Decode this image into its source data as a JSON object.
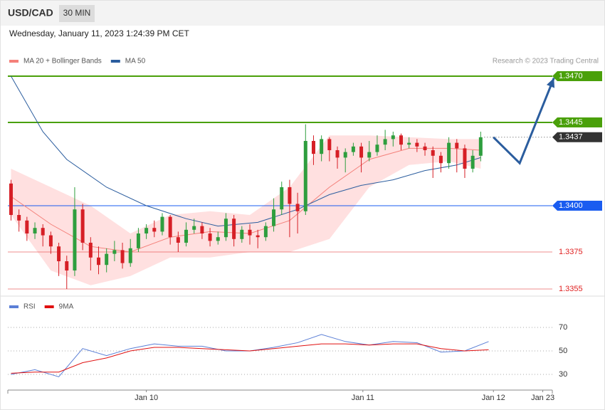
{
  "header": {
    "symbol": "USD/CAD",
    "timeframe": "30 MIN",
    "datetime": "Wednesday, January 11, 2023 1:24:39 PM CET",
    "credit": "Research © 2023 Trading Central"
  },
  "chart_data": [
    {
      "type": "candlestick",
      "xlim": [
        -0.4,
        68
      ],
      "ylim": [
        1.3353,
        1.348
      ],
      "up_color": "#2e9e3e",
      "down_color": "#d61f26",
      "open": [
        1.3412,
        1.3395,
        1.3392,
        1.3385,
        1.3388,
        1.3384,
        1.3378,
        1.337,
        1.3365,
        1.3398,
        1.338,
        1.3372,
        1.3368,
        1.3374,
        1.3376,
        1.3369,
        1.3377,
        1.3385,
        1.3388,
        1.3386,
        1.3394,
        1.3383,
        1.338,
        1.3387,
        1.3389,
        1.3385,
        1.3381,
        1.3383,
        1.3393,
        1.3382,
        1.3387,
        1.3384,
        1.3383,
        1.3389,
        1.3398,
        1.341,
        1.3401,
        1.3397,
        1.3435,
        1.3428,
        1.3436,
        1.343,
        1.3426,
        1.3429,
        1.3432,
        1.3426,
        1.3429,
        1.3433,
        1.3436,
        1.3438,
        1.3433,
        1.3434,
        1.3432,
        1.343,
        1.3427,
        1.3423,
        1.3434,
        1.3431,
        1.342,
        1.3427
      ],
      "high": [
        1.3414,
        1.3398,
        1.3394,
        1.3391,
        1.339,
        1.3386,
        1.338,
        1.3373,
        1.341,
        1.3401,
        1.3383,
        1.3378,
        1.3377,
        1.3381,
        1.338,
        1.3382,
        1.3388,
        1.339,
        1.3392,
        1.3396,
        1.3395,
        1.3386,
        1.3391,
        1.3393,
        1.3391,
        1.3388,
        1.3386,
        1.3396,
        1.3395,
        1.3389,
        1.339,
        1.3387,
        1.3391,
        1.3404,
        1.3413,
        1.3414,
        1.3407,
        1.3444,
        1.3438,
        1.3438,
        1.3437,
        1.3432,
        1.3431,
        1.3434,
        1.3434,
        1.3435,
        1.3438,
        1.3441,
        1.344,
        1.3439,
        1.3437,
        1.3436,
        1.3434,
        1.3432,
        1.3429,
        1.3437,
        1.3436,
        1.3433,
        1.343,
        1.344
      ],
      "low": [
        1.3392,
        1.3386,
        1.3381,
        1.3382,
        1.3378,
        1.3374,
        1.3362,
        1.3355,
        1.3362,
        1.3376,
        1.3365,
        1.3363,
        1.3364,
        1.337,
        1.3366,
        1.3367,
        1.3375,
        1.3382,
        1.3383,
        1.3384,
        1.3379,
        1.3375,
        1.3378,
        1.3385,
        1.3382,
        1.3378,
        1.3379,
        1.3381,
        1.3378,
        1.338,
        1.3379,
        1.3377,
        1.3381,
        1.3386,
        1.3395,
        1.3383,
        1.3385,
        1.3395,
        1.3422,
        1.3424,
        1.3424,
        1.342,
        1.3418,
        1.3427,
        1.3418,
        1.3424,
        1.3427,
        1.343,
        1.3432,
        1.343,
        1.3431,
        1.3429,
        1.3427,
        1.3415,
        1.3418,
        1.342,
        1.3418,
        1.3415,
        1.3418,
        1.3424
      ],
      "close": [
        1.3395,
        1.3392,
        1.3385,
        1.3388,
        1.3384,
        1.3378,
        1.337,
        1.3365,
        1.3398,
        1.338,
        1.3372,
        1.3368,
        1.3374,
        1.3376,
        1.3369,
        1.3377,
        1.3385,
        1.3388,
        1.3386,
        1.3394,
        1.3383,
        1.338,
        1.3387,
        1.3389,
        1.3385,
        1.3381,
        1.3383,
        1.3393,
        1.3382,
        1.3387,
        1.3384,
        1.3383,
        1.3389,
        1.3398,
        1.341,
        1.3401,
        1.3397,
        1.3435,
        1.3428,
        1.3436,
        1.343,
        1.3426,
        1.3429,
        1.3432,
        1.3426,
        1.3429,
        1.3433,
        1.3436,
        1.3438,
        1.3433,
        1.3434,
        1.3432,
        1.343,
        1.3427,
        1.3423,
        1.3434,
        1.3431,
        1.342,
        1.3427,
        1.3437
      ],
      "series": [
        {
          "name": "MA 20 + Bollinger Bands",
          "color": "#f4807a",
          "band_color": "#ffe0e0",
          "x": [
            0,
            5,
            10,
            15,
            20,
            25,
            30,
            35,
            40,
            45,
            50,
            55,
            59
          ],
          "values": [
            1.3405,
            1.339,
            1.3378,
            1.3375,
            1.3383,
            1.3386,
            1.3385,
            1.3392,
            1.341,
            1.3425,
            1.3431,
            1.3431,
            1.343
          ],
          "upper": [
            1.342,
            1.341,
            1.34,
            1.3385,
            1.3395,
            1.3397,
            1.3395,
            1.341,
            1.3438,
            1.3438,
            1.3437,
            1.3436,
            1.3436
          ],
          "lower": [
            1.3395,
            1.3365,
            1.3357,
            1.3362,
            1.3372,
            1.3372,
            1.3375,
            1.3375,
            1.3382,
            1.341,
            1.3422,
            1.3424,
            1.342
          ]
        },
        {
          "name": "MA 50",
          "color": "#2b5d9e",
          "x": [
            0,
            4,
            7,
            12,
            17,
            22,
            26,
            31,
            36,
            40,
            44,
            48,
            52,
            56,
            59
          ],
          "values": [
            1.347,
            1.344,
            1.3425,
            1.341,
            1.34,
            1.3393,
            1.3389,
            1.3391,
            1.3398,
            1.3406,
            1.3411,
            1.3414,
            1.3419,
            1.3422,
            1.3426
          ]
        }
      ],
      "levels": [
        {
          "value": 1.347,
          "label": "1.3470",
          "color": "#4aa00a",
          "style": "tag"
        },
        {
          "value": 1.3445,
          "label": "1.3445",
          "color": "#4aa00a",
          "style": "tag"
        },
        {
          "value": 1.3437,
          "label": "1.3437",
          "color": "#333333",
          "style": "current"
        },
        {
          "value": 1.34,
          "label": "1.3400",
          "color": "#1a5cf0",
          "style": "tag"
        },
        {
          "value": 1.3375,
          "label": "1.3375",
          "color": "#e02020",
          "style": "text"
        },
        {
          "value": 1.3355,
          "label": "1.3355",
          "color": "#e02020",
          "style": "text"
        }
      ],
      "projection": {
        "color": "#2b5d9e",
        "x": [
          60.6,
          63.9,
          68.2
        ],
        "values": [
          1.3437,
          1.3423,
          1.3469
        ]
      }
    },
    {
      "type": "line",
      "xlim": [
        -0.4,
        68
      ],
      "ylim": [
        15,
        82
      ],
      "yticks": [
        70,
        50,
        30
      ],
      "xticks": [
        {
          "value": 17,
          "label": "Jan 10"
        },
        {
          "value": 44.2,
          "label": "Jan 11"
        },
        {
          "value": 60.6,
          "label": "Jan 12"
        },
        {
          "value": 66.8,
          "label": "Jan 23"
        }
      ],
      "series": [
        {
          "name": "RSI",
          "color": "#5b7fd6",
          "x": [
            0,
            3,
            6,
            9,
            12,
            15,
            18,
            21,
            24,
            27,
            30,
            33,
            36,
            39,
            42,
            45,
            48,
            51,
            54,
            57,
            60
          ],
          "values": [
            30,
            34,
            28,
            52,
            46,
            52,
            56,
            54,
            54,
            50,
            50,
            53,
            57,
            64,
            58,
            55,
            58,
            57,
            49,
            50,
            58
          ]
        },
        {
          "name": "9MA",
          "color": "#e01010",
          "x": [
            0,
            3,
            6,
            9,
            12,
            15,
            18,
            21,
            24,
            27,
            30,
            33,
            36,
            39,
            42,
            45,
            48,
            51,
            54,
            57,
            60
          ],
          "values": [
            31,
            32,
            32,
            40,
            44,
            50,
            53,
            53,
            52,
            51,
            50,
            52,
            54,
            56,
            56,
            55,
            56,
            56,
            52,
            50,
            51
          ]
        }
      ]
    }
  ]
}
